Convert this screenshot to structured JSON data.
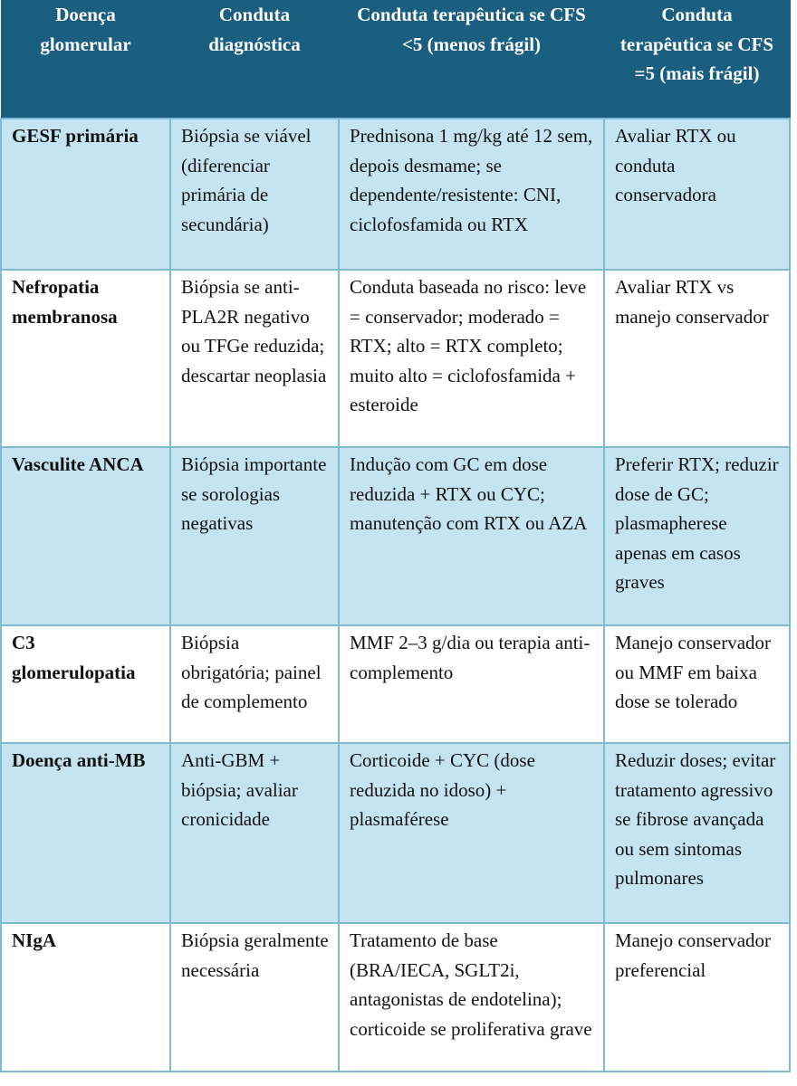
{
  "headers": [
    "Doença glomerular",
    "Conduta diagnóstica",
    "Conduta terapêutica se CFS <5 (menos frágil)",
    "Conduta terapêutica se CFS =5 (mais frágil)"
  ],
  "rows": [
    {
      "disease": "GESF primária",
      "diagnosis": "Biópsia se viável (diferenciar primária de secundária)",
      "therapy_less_frail": "Prednisona 1 mg/kg até 12 sem, depois desmame; se dependente/resistente: CNI, ciclofosfamida ou RTX",
      "therapy_more_frail": "Avaliar RTX ou conduta conservadora"
    },
    {
      "disease": "Nefropatia membranosa",
      "diagnosis": "Biópsia se anti-PLA2R negativo ou TFGe reduzida; descartar neoplasia",
      "therapy_less_frail": "Conduta baseada no risco: leve = conservador; moderado = RTX; alto = RTX completo; muito alto = ciclofosfamida + esteroide",
      "therapy_more_frail": "Avaliar RTX vs manejo conservador"
    },
    {
      "disease": "Vasculite ANCA",
      "diagnosis": "Biópsia importante se sorologias negativas",
      "therapy_less_frail": "Indução com GC em dose reduzida + RTX ou CYC; manutenção com RTX ou AZA",
      "therapy_more_frail": "Preferir RTX; reduzir dose de GC; plasmapherese apenas em casos graves"
    },
    {
      "disease": "C3 glomerulopatia",
      "diagnosis": "Biópsia obrigatória; painel de complemento",
      "therapy_less_frail": "MMF 2–3 g/dia ou terapia anti-complemento",
      "therapy_more_frail": "Manejo conservador ou MMF em baixa dose se tolerado"
    },
    {
      "disease": "Doença anti-MB",
      "diagnosis": "Anti-GBM + biópsia; avaliar cronicidade",
      "therapy_less_frail": "Corticoide + CYC (dose reduzida no idoso) + plasmaférese",
      "therapy_more_frail": "Reduzir doses; evitar tratamento agressivo se fibrose avançada ou sem sintomas pulmonares"
    },
    {
      "disease": "NIgA",
      "diagnosis": "Biópsia geralmente necessária",
      "therapy_less_frail": "Tratamento de base (BRA/IECA, SGLT2i, antagonistas de endotelina); corticoide se proliferativa grave",
      "therapy_more_frail": "Manejo conservador preferencial"
    }
  ],
  "colors": {
    "header_bg": "#1a5e80",
    "alt_row_bg": "#c5e4f2",
    "border": "#7fbad5"
  }
}
